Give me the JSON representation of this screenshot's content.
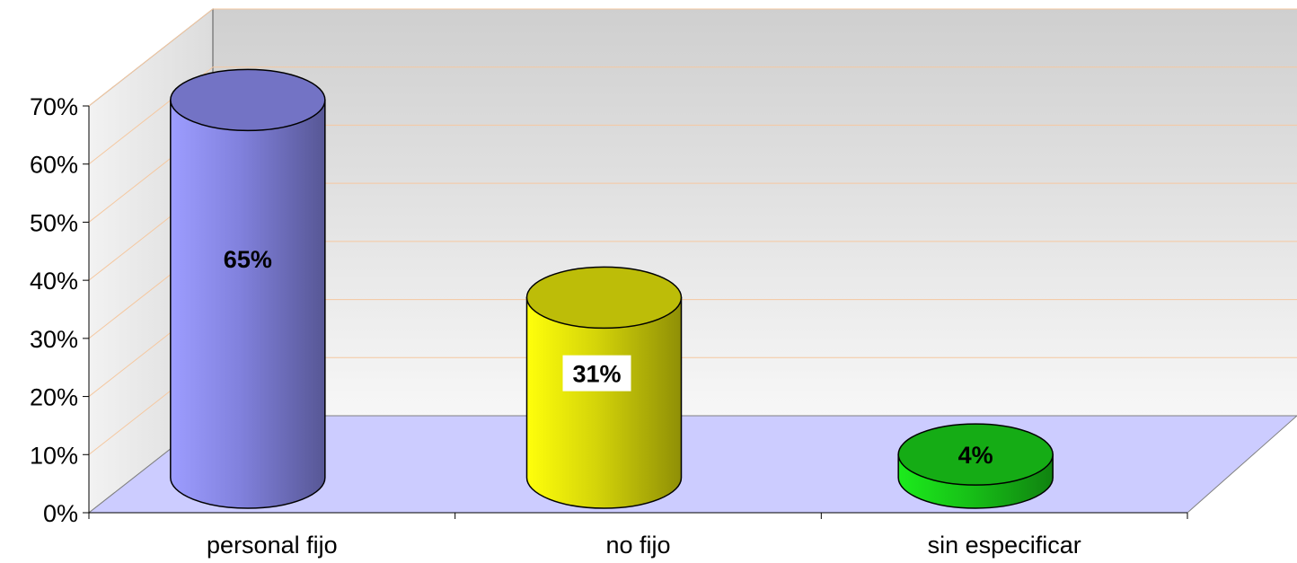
{
  "chart_data": {
    "type": "bar",
    "style": "3d-cylinder",
    "categories": [
      "personal fijo",
      "no fijo",
      "sin especificar"
    ],
    "values": [
      65,
      31,
      4
    ],
    "data_labels": [
      "65%",
      "31%",
      "4%"
    ],
    "colors": [
      "#8c8cf0",
      "#e6e60a",
      "#19d219"
    ],
    "ylim": [
      0,
      70
    ],
    "yticks": [
      0,
      10,
      20,
      30,
      40,
      50,
      60,
      70
    ],
    "ytick_labels": [
      "0%",
      "10%",
      "20%",
      "30%",
      "40%",
      "50%",
      "60%",
      "70%"
    ],
    "grid": true,
    "grid_color": "#f5c8a0",
    "floor_color": "#ccccff",
    "wall_color": "#d9d9d9",
    "title": "",
    "xlabel": "",
    "ylabel": ""
  }
}
